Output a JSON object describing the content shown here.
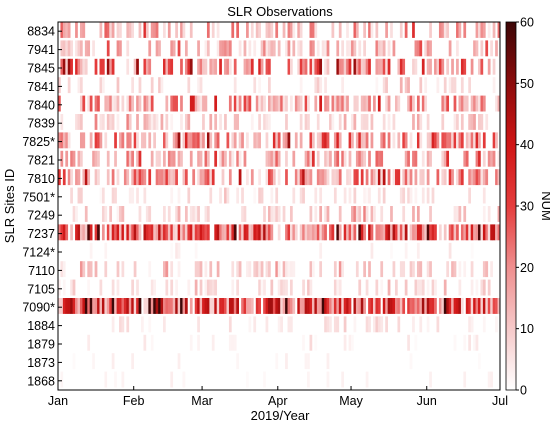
{
  "chart_data": {
    "type": "heatmap",
    "title": "SLR Observations",
    "xlabel": "2019/Year",
    "ylabel": "SLR Sites ID",
    "x_ticks": [
      "Jan",
      "Feb",
      "Mar",
      "Apr",
      "May",
      "Jun",
      "Jul"
    ],
    "x_range": [
      "2019-01-01",
      "2019-07-01"
    ],
    "sites": [
      "8834",
      "7941",
      "7845",
      "7841",
      "7840",
      "7839",
      "7825*",
      "7821",
      "7810",
      "7501*",
      "7249",
      "7237",
      "7124*",
      "7110",
      "7105",
      "7090*",
      "1884",
      "1879",
      "1873",
      "1868"
    ],
    "colorbar": {
      "label": "NUM",
      "min": 0,
      "max": 60,
      "ticks": [
        0,
        10,
        20,
        30,
        40,
        50,
        60
      ],
      "colors": [
        "#ffffff",
        "#f6c9c9",
        "#ef8f8f",
        "#e53d3d",
        "#d01616",
        "#8c0c0c",
        "#3d0707"
      ]
    },
    "mean_daily_num_by_site": {
      "8834": 14,
      "7941": 12,
      "7845": 20,
      "7841": 6,
      "7840": 16,
      "7839": 9,
      "7825*": 20,
      "7821": 14,
      "7810": 18,
      "7501*": 5,
      "7249": 9,
      "7237": 24,
      "7124*": 3,
      "7110": 8,
      "7105": 6,
      "7090*": 26,
      "1884": 4,
      "1879": 3,
      "1873": 2,
      "1868": 2
    },
    "observation_density_by_site": {
      "8834": 0.55,
      "7941": 0.45,
      "7845": 0.6,
      "7841": 0.3,
      "7840": 0.55,
      "7839": 0.4,
      "7825*": 0.55,
      "7821": 0.45,
      "7810": 0.6,
      "7501*": 0.25,
      "7249": 0.35,
      "7237": 0.85,
      "7124*": 0.12,
      "7110": 0.35,
      "7105": 0.28,
      "7090*": 0.9,
      "1884": 0.2,
      "1879": 0.15,
      "1873": 0.1,
      "1868": 0.12
    }
  }
}
